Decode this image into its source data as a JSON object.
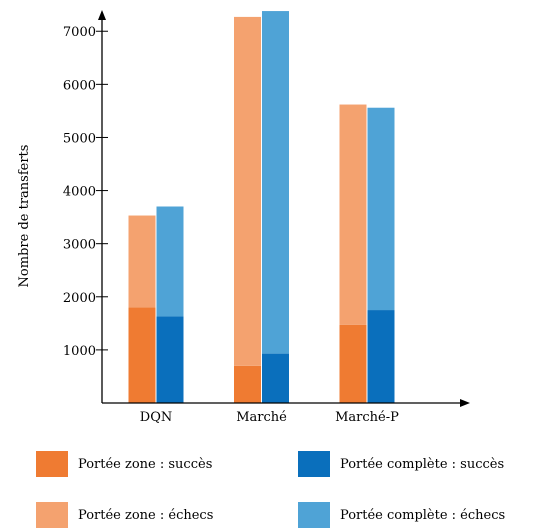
{
  "chart_data": {
    "type": "bar",
    "stacked": true,
    "categories": [
      "DQN",
      "Marché",
      "Marché-P"
    ],
    "ylabel": "Nombre de transferts",
    "xlabel": "",
    "ylim": [
      0,
      7400
    ],
    "yticks": [
      1000,
      2000,
      3000,
      4000,
      5000,
      6000,
      7000
    ],
    "grid": false,
    "legend_position": "bottom",
    "series": [
      {
        "name": "Portée zone : succès",
        "group": "zone",
        "part": "success",
        "color": "#ef7b32",
        "values": [
          1800,
          700,
          1470
        ]
      },
      {
        "name": "Portée zone : échecs",
        "group": "zone",
        "part": "failure",
        "color": "#f4a26f",
        "values": [
          1730,
          6570,
          4150
        ]
      },
      {
        "name": "Portée complète : succès",
        "group": "complete",
        "part": "success",
        "color": "#0a6fbc",
        "values": [
          1630,
          930,
          1750
        ]
      },
      {
        "name": "Portée complète : échecs",
        "group": "complete",
        "part": "failure",
        "color": "#4fa3d6",
        "values": [
          2070,
          6450,
          3810
        ]
      }
    ]
  }
}
